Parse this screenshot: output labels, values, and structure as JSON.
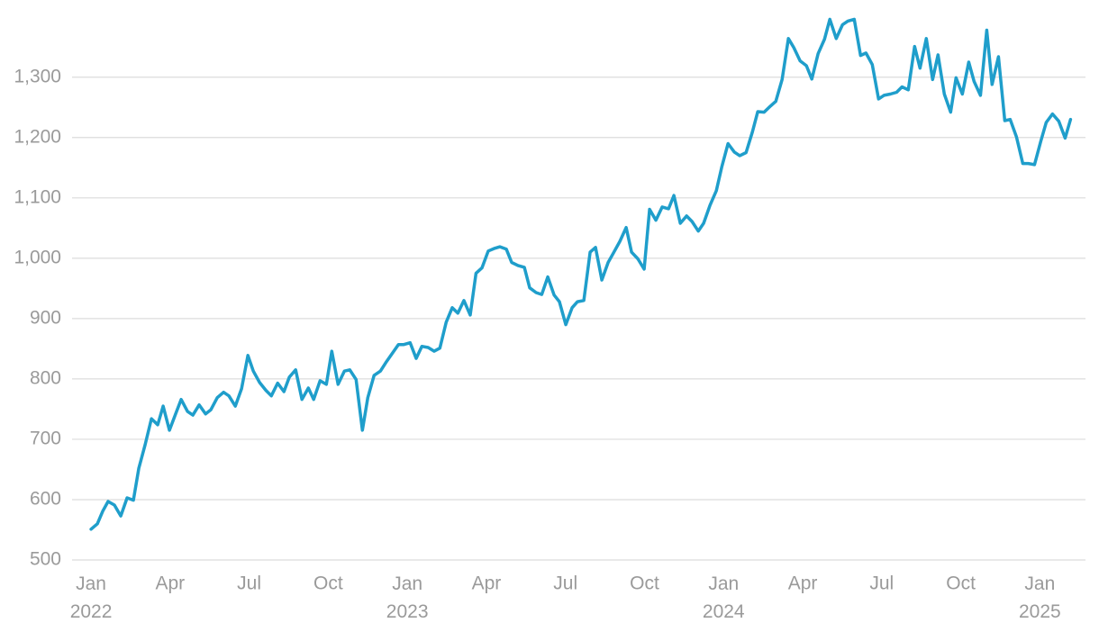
{
  "chart_data": {
    "type": "line",
    "color": "#1f9ecb",
    "grid": true,
    "x": [
      2022.0,
      2022.02,
      2022.037,
      2022.054,
      2022.074,
      2022.094,
      2022.114,
      2022.134,
      2022.151,
      2022.171,
      2022.191,
      2022.211,
      2022.228,
      2022.248,
      2022.268,
      2022.285,
      2022.305,
      2022.322,
      2022.342,
      2022.362,
      2022.379,
      2022.399,
      2022.419,
      2022.436,
      2022.456,
      2022.476,
      2022.496,
      2022.513,
      2022.533,
      2022.553,
      2022.57,
      2022.59,
      2022.61,
      2022.627,
      2022.647,
      2022.667,
      2022.687,
      2022.704,
      2022.724,
      2022.744,
      2022.761,
      2022.781,
      2022.801,
      2022.818,
      2022.838,
      2022.858,
      2022.875,
      2022.895,
      2022.915,
      2022.932,
      2022.952,
      2022.972,
      2022.989,
      2023.009,
      2023.028,
      2023.046,
      2023.066,
      2023.085,
      2023.103,
      2023.123,
      2023.142,
      2023.16,
      2023.179,
      2023.199,
      2023.217,
      2023.236,
      2023.256,
      2023.274,
      2023.293,
      2023.313,
      2023.33,
      2023.35,
      2023.37,
      2023.387,
      2023.407,
      2023.425,
      2023.444,
      2023.464,
      2023.481,
      2023.501,
      2023.521,
      2023.538,
      2023.558,
      2023.578,
      2023.595,
      2023.615,
      2023.635,
      2023.652,
      2023.672,
      2023.692,
      2023.709,
      2023.729,
      2023.749,
      2023.766,
      2023.786,
      2023.806,
      2023.826,
      2023.843,
      2023.863,
      2023.883,
      2023.9,
      2023.92,
      2023.937,
      2023.957,
      2023.977,
      2023.994,
      2024.014,
      2024.034,
      2024.051,
      2024.071,
      2024.091,
      2024.108,
      2024.128,
      2024.148,
      2024.165,
      2024.185,
      2024.205,
      2024.222,
      2024.242,
      2024.262,
      2024.279,
      2024.299,
      2024.319,
      2024.336,
      2024.356,
      2024.376,
      2024.393,
      2024.413,
      2024.433,
      2024.45,
      2024.47,
      2024.49,
      2024.507,
      2024.527,
      2024.547,
      2024.564,
      2024.584,
      2024.604,
      2024.621,
      2024.641,
      2024.661,
      2024.678,
      2024.698,
      2024.718,
      2024.735,
      2024.755,
      2024.775,
      2024.792,
      2024.812,
      2024.832,
      2024.849,
      2024.869,
      2024.889,
      2024.906,
      2024.926,
      2024.946,
      2024.963,
      2024.983,
      2025.003,
      2025.02,
      2025.04,
      2025.06,
      2025.08,
      2025.097
    ],
    "values": [
      551,
      560,
      581,
      597,
      591,
      573,
      603,
      599,
      652,
      691,
      734,
      724,
      755,
      715,
      743,
      766,
      746,
      740,
      757,
      742,
      749,
      769,
      778,
      772,
      755,
      784,
      839,
      813,
      794,
      781,
      772,
      793,
      779,
      803,
      815,
      766,
      785,
      766,
      797,
      791,
      846,
      791,
      813,
      815,
      799,
      715,
      769,
      806,
      813,
      827,
      842,
      857,
      857,
      860,
      834,
      854,
      852,
      846,
      851,
      894,
      918,
      909,
      930,
      906,
      975,
      984,
      1012,
      1016,
      1019,
      1015,
      993,
      988,
      985,
      951,
      943,
      940,
      969,
      939,
      928,
      890,
      918,
      928,
      930,
      1010,
      1018,
      964,
      993,
      1009,
      1028,
      1051,
      1010,
      999,
      982,
      1081,
      1063,
      1085,
      1082,
      1104,
      1058,
      1070,
      1061,
      1045,
      1058,
      1088,
      1112,
      1151,
      1190,
      1176,
      1170,
      1175,
      1209,
      1243,
      1242,
      1252,
      1260,
      1296,
      1364,
      1349,
      1327,
      1319,
      1297,
      1339,
      1363,
      1396,
      1364,
      1387,
      1393,
      1396,
      1336,
      1340,
      1321,
      1264,
      1270,
      1272,
      1275,
      1284,
      1279,
      1351,
      1315,
      1364,
      1296,
      1337,
      1272,
      1242,
      1299,
      1272,
      1325,
      1293,
      1270,
      1378,
      1288,
      1334,
      1228,
      1230,
      1201,
      1157,
      1157,
      1155,
      1194,
      1225,
      1239,
      1227,
      1199,
      1230
    ],
    "xlim": [
      2021.94,
      2025.13
    ],
    "xticks": [
      {
        "value": 2022,
        "label": "Jan 2022"
      },
      {
        "value": 2022.25,
        "label": "Apr"
      },
      {
        "value": 2022.5,
        "label": "Jul"
      },
      {
        "value": 2022.75,
        "label": "Oct"
      },
      {
        "value": 2023,
        "label": "Jan 2023"
      },
      {
        "value": 2023.25,
        "label": "Apr"
      },
      {
        "value": 2023.5,
        "label": "Jul"
      },
      {
        "value": 2023.75,
        "label": "Oct"
      },
      {
        "value": 2024,
        "label": "Jan 2024"
      },
      {
        "value": 2024.25,
        "label": "Apr"
      },
      {
        "value": 2024.5,
        "label": "Jul"
      },
      {
        "value": 2024.75,
        "label": "Oct"
      },
      {
        "value": 2025,
        "label": "Jan 2025"
      }
    ],
    "ylim": [
      500,
      1413
    ],
    "yticks": [
      500,
      600,
      700,
      800,
      900,
      {
        "value": 1000,
        "label": "1,000"
      },
      {
        "value": 1100,
        "label": "1,100"
      },
      {
        "value": 1200,
        "label": "1,200"
      },
      {
        "value": 1300,
        "label": "1,300"
      }
    ]
  }
}
